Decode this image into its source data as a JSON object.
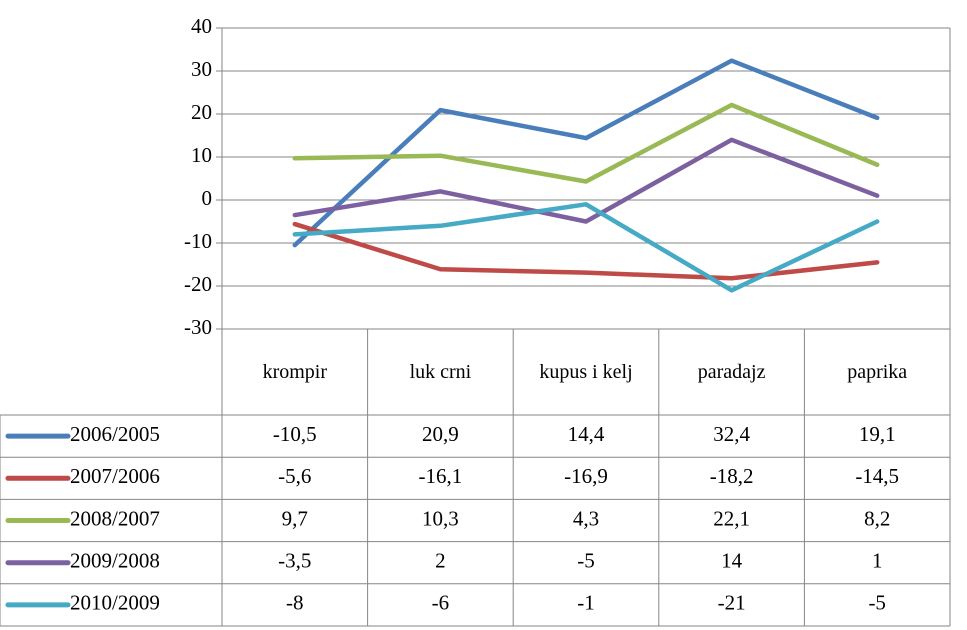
{
  "chart_data": {
    "type": "line",
    "categories": [
      "krompir",
      "luk crni",
      "kupus i kelj",
      "paradajz",
      "paprika"
    ],
    "series": [
      {
        "name": "2006/2005",
        "color": "#4a7ebb",
        "values": [
          -10.5,
          20.9,
          14.4,
          32.4,
          19.1
        ],
        "value_labels": [
          "-10,5",
          "20,9",
          "14,4",
          "32,4",
          "19,1"
        ]
      },
      {
        "name": "2007/2006",
        "color": "#be4b48",
        "values": [
          -5.6,
          -16.1,
          -16.9,
          -18.2,
          -14.5
        ],
        "value_labels": [
          "-5,6",
          "-16,1",
          "-16,9",
          "-18,2",
          "-14,5"
        ]
      },
      {
        "name": "2008/2007",
        "color": "#98b954",
        "values": [
          9.7,
          10.3,
          4.3,
          22.1,
          8.2
        ],
        "value_labels": [
          "9,7",
          "10,3",
          "4,3",
          "22,1",
          "8,2"
        ]
      },
      {
        "name": "2009/2008",
        "color": "#7d60a0",
        "values": [
          -3.5,
          2,
          -5,
          14,
          1
        ],
        "value_labels": [
          "-3,5",
          "2",
          "-5",
          "14",
          "1"
        ]
      },
      {
        "name": "2010/2009",
        "color": "#46aac5",
        "values": [
          -8,
          -6,
          -1,
          -21,
          -5
        ],
        "value_labels": [
          "-8",
          "-6",
          "-1",
          "-21",
          "-5"
        ]
      }
    ],
    "ylim": [
      -30,
      40
    ],
    "yticks": [
      -30,
      -20,
      -10,
      0,
      10,
      20,
      30,
      40
    ],
    "grid": true
  }
}
